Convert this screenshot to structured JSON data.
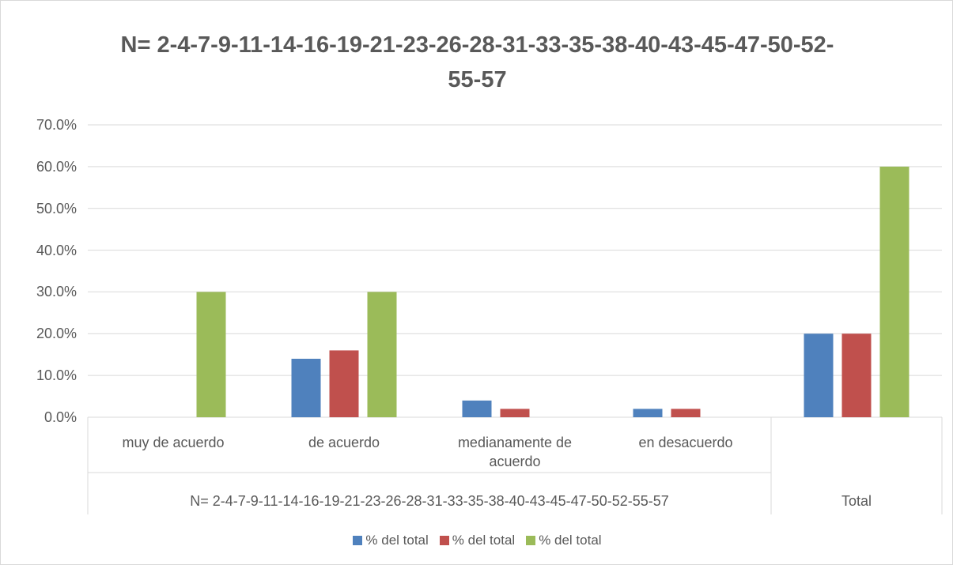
{
  "chart_data": {
    "type": "bar",
    "title": "N= 2-4-7-9-11-14-16-19-21-23-26-28-31-33-35-38-40-43-45-47-50-52-55-57",
    "categories": [
      "muy de acuerdo",
      "de acuerdo",
      "medianamente de acuerdo",
      "en desacuerdo",
      null
    ],
    "groups": [
      {
        "name": "N= 2-4-7-9-11-14-16-19-21-23-26-28-31-33-35-38-40-43-45-47-50-52-55-57",
        "count": 4
      },
      {
        "name": "Total",
        "count": 1
      }
    ],
    "series": [
      {
        "name": "% del total",
        "color": "#4f81bd",
        "values": [
          0,
          14,
          4,
          2,
          20
        ]
      },
      {
        "name": "% del total",
        "color": "#c0504d",
        "values": [
          0,
          16,
          2,
          2,
          20
        ]
      },
      {
        "name": "% del total",
        "color": "#9bbb59",
        "values": [
          30,
          30,
          0,
          0,
          60
        ]
      }
    ],
    "ylim": [
      0,
      70
    ],
    "yticks": [
      {
        "value": 0,
        "label": "0.0%"
      },
      {
        "value": 10,
        "label": "10.0%"
      },
      {
        "value": 20,
        "label": "20.0%"
      },
      {
        "value": 30,
        "label": "30.0%"
      },
      {
        "value": 40,
        "label": "40.0%"
      },
      {
        "value": 50,
        "label": "50.0%"
      },
      {
        "value": 60,
        "label": "60.0%"
      },
      {
        "value": 70,
        "label": "70.0%"
      }
    ],
    "grid": true,
    "legend": "bottom"
  }
}
